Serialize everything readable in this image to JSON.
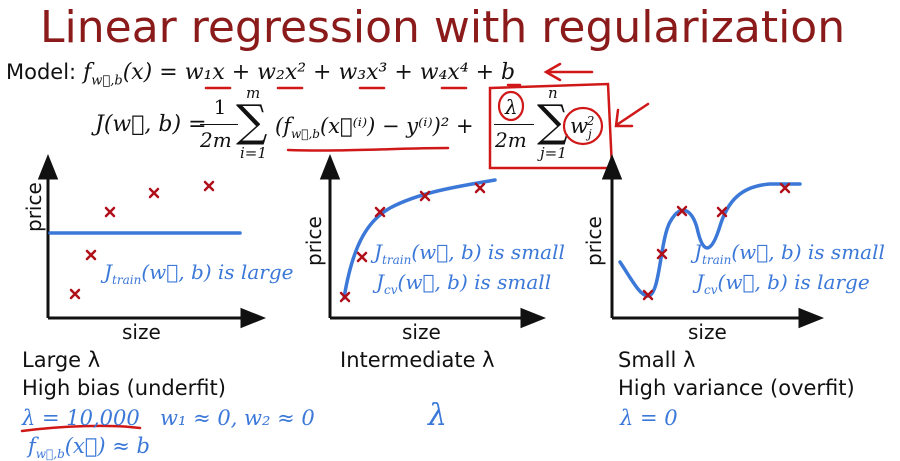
{
  "title": "Linear regression with regularization",
  "model": {
    "label": "Model:",
    "lhs": "f",
    "lhs_sub": "w⃗,b",
    "lhs_arg": "(x) =",
    "rhs": "w₁x + w₂x² + w₃x³ + w₄x⁴ + b"
  },
  "cost": {
    "lhs": "J(w⃗, b) =",
    "frac1_num": "1",
    "frac1_den": "2m",
    "sum1_top": "m",
    "sum1_bottom": "i=1",
    "sum_term": "(f",
    "sum_term_sub": "w⃗,b",
    "sum_term_rest": "(x⃗⁽ⁱ⁾) − y⁽ⁱ⁾)² +",
    "frac2_num": "λ",
    "frac2_den": "2m",
    "sum2_top": "n",
    "sum2_bottom": "j=1",
    "reg_term": "w",
    "reg_term_sub": "j",
    "reg_term_sup": "2"
  },
  "panels": [
    {
      "ylabel": "price",
      "xlabel": "size",
      "caption_line1": "Large λ",
      "caption_line2": "High bias (underfit)",
      "annotation1": "J",
      "annotation1_sub": "train",
      "annotation1_rest": "(w⃗, b) is large"
    },
    {
      "ylabel": "price",
      "xlabel": "size",
      "caption_line1": "Intermediate λ",
      "annotation1": "J",
      "annotation1_sub": "train",
      "annotation1_rest": "(w⃗, b) is small",
      "annotation2": "J",
      "annotation2_sub": "cv",
      "annotation2_rest": "(w⃗, b) is small"
    },
    {
      "ylabel": "price",
      "xlabel": "size",
      "caption_line1": "Small λ",
      "caption_line2": "High variance (overfit)",
      "annotation1": "J",
      "annotation1_sub": "train",
      "annotation1_rest": "(w⃗, b) is small",
      "annotation2": "J",
      "annotation2_sub": "cv",
      "annotation2_rest": "(w⃗, b) is large"
    }
  ],
  "bottom": {
    "lambda_value": "λ = 10,000",
    "weights": "w₁ ≈ 0, w₂ ≈ 0",
    "f_approx": "f",
    "f_approx_sub": "w⃗,b",
    "f_approx_rest": "(x⃗) ≈ b",
    "middle_lambda": "λ",
    "right_lambda": "λ = 0"
  },
  "colors": {
    "title": "#8b1a1a",
    "fit_curve": "#3b78d8",
    "data_points": "#b0101a",
    "annotation_red": "#d01818",
    "text": "#111111"
  }
}
